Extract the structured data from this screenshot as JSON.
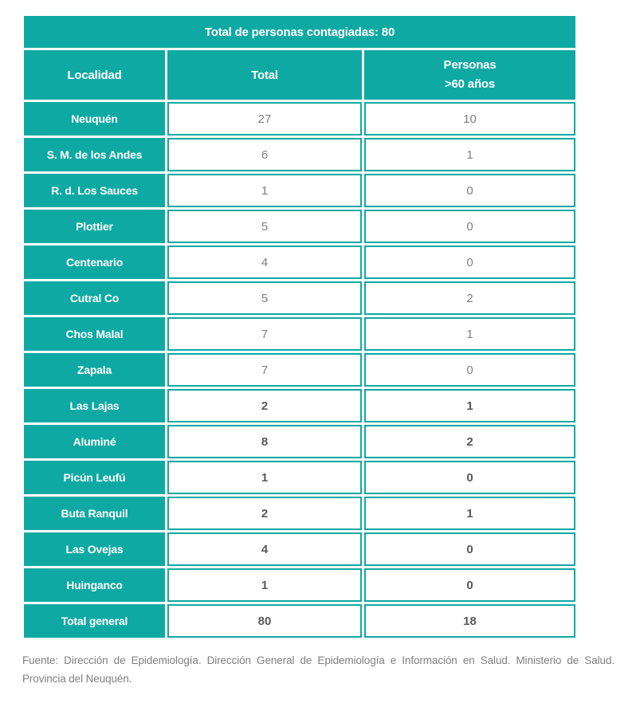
{
  "chart_data": {
    "type": "table",
    "title": "Total de personas contagiadas: 80",
    "columns": [
      "Localidad",
      "Total",
      "Personas >60 años"
    ],
    "rows": [
      [
        "Neuquén",
        27,
        10
      ],
      [
        "S. M. de los Andes",
        6,
        1
      ],
      [
        "R. d. Los Sauces",
        1,
        0
      ],
      [
        "Plottier",
        5,
        0
      ],
      [
        "Centenario",
        4,
        0
      ],
      [
        "Cutral Co",
        5,
        2
      ],
      [
        "Chos Malal",
        7,
        1
      ],
      [
        "Zapala",
        7,
        0
      ],
      [
        "Las Lajas",
        2,
        1
      ],
      [
        "Aluminé",
        8,
        2
      ],
      [
        "Picún Leufú",
        1,
        0
      ],
      [
        "Buta Ranquil",
        2,
        1
      ],
      [
        "Las Ovejas",
        4,
        0
      ],
      [
        "Huinganco",
        1,
        0
      ],
      [
        "Total general",
        80,
        18
      ]
    ]
  },
  "table": {
    "title": "Total de personas contagiadas: 80",
    "headers": [
      {
        "line1": "Localidad",
        "line2": ""
      },
      {
        "line1": "Total",
        "line2": ""
      },
      {
        "line1": "Personas",
        "line2": ">60 años"
      }
    ],
    "rows": [
      {
        "localidad": "Neuquén",
        "total": "27",
        "mayores60": "10",
        "bold": false,
        "is_total": false
      },
      {
        "localidad": "S. M. de los Andes",
        "total": "6",
        "mayores60": "1",
        "bold": false,
        "is_total": false
      },
      {
        "localidad": "R. d. Los Sauces",
        "total": "1",
        "mayores60": "0",
        "bold": false,
        "is_total": false
      },
      {
        "localidad": "Plottier",
        "total": "5",
        "mayores60": "0",
        "bold": false,
        "is_total": false
      },
      {
        "localidad": "Centenario",
        "total": "4",
        "mayores60": "0",
        "bold": false,
        "is_total": false
      },
      {
        "localidad": "Cutral Co",
        "total": "5",
        "mayores60": "2",
        "bold": false,
        "is_total": false
      },
      {
        "localidad": "Chos Malal",
        "total": "7",
        "mayores60": "1",
        "bold": false,
        "is_total": false
      },
      {
        "localidad": "Zapala",
        "total": "7",
        "mayores60": "0",
        "bold": false,
        "is_total": false
      },
      {
        "localidad": "Las Lajas",
        "total": "2",
        "mayores60": "1",
        "bold": true,
        "is_total": false
      },
      {
        "localidad": "Aluminé",
        "total": "8",
        "mayores60": "2",
        "bold": true,
        "is_total": false
      },
      {
        "localidad": "Picún Leufú",
        "total": "1",
        "mayores60": "0",
        "bold": true,
        "is_total": false
      },
      {
        "localidad": "Buta Ranquil",
        "total": "2",
        "mayores60": "1",
        "bold": true,
        "is_total": false
      },
      {
        "localidad": "Las Ovejas",
        "total": "4",
        "mayores60": "0",
        "bold": true,
        "is_total": false
      },
      {
        "localidad": "Huinganco",
        "total": "1",
        "mayores60": "0",
        "bold": true,
        "is_total": false
      },
      {
        "localidad": "Total general",
        "total": "80",
        "mayores60": "18",
        "bold": true,
        "is_total": true
      }
    ]
  },
  "footer": {
    "text": "Fuente: Dirección de Epidemiología. Dirección General de Epidemiología e Información en Salud. Ministerio de Salud. Provincia del Neuquén."
  },
  "colors": {
    "teal": "#0FA9A3",
    "header_text": "#FFFFFF",
    "value_text": "#7F7F7F",
    "value_text_emphasis": "#595959",
    "footer_text": "#808080"
  }
}
